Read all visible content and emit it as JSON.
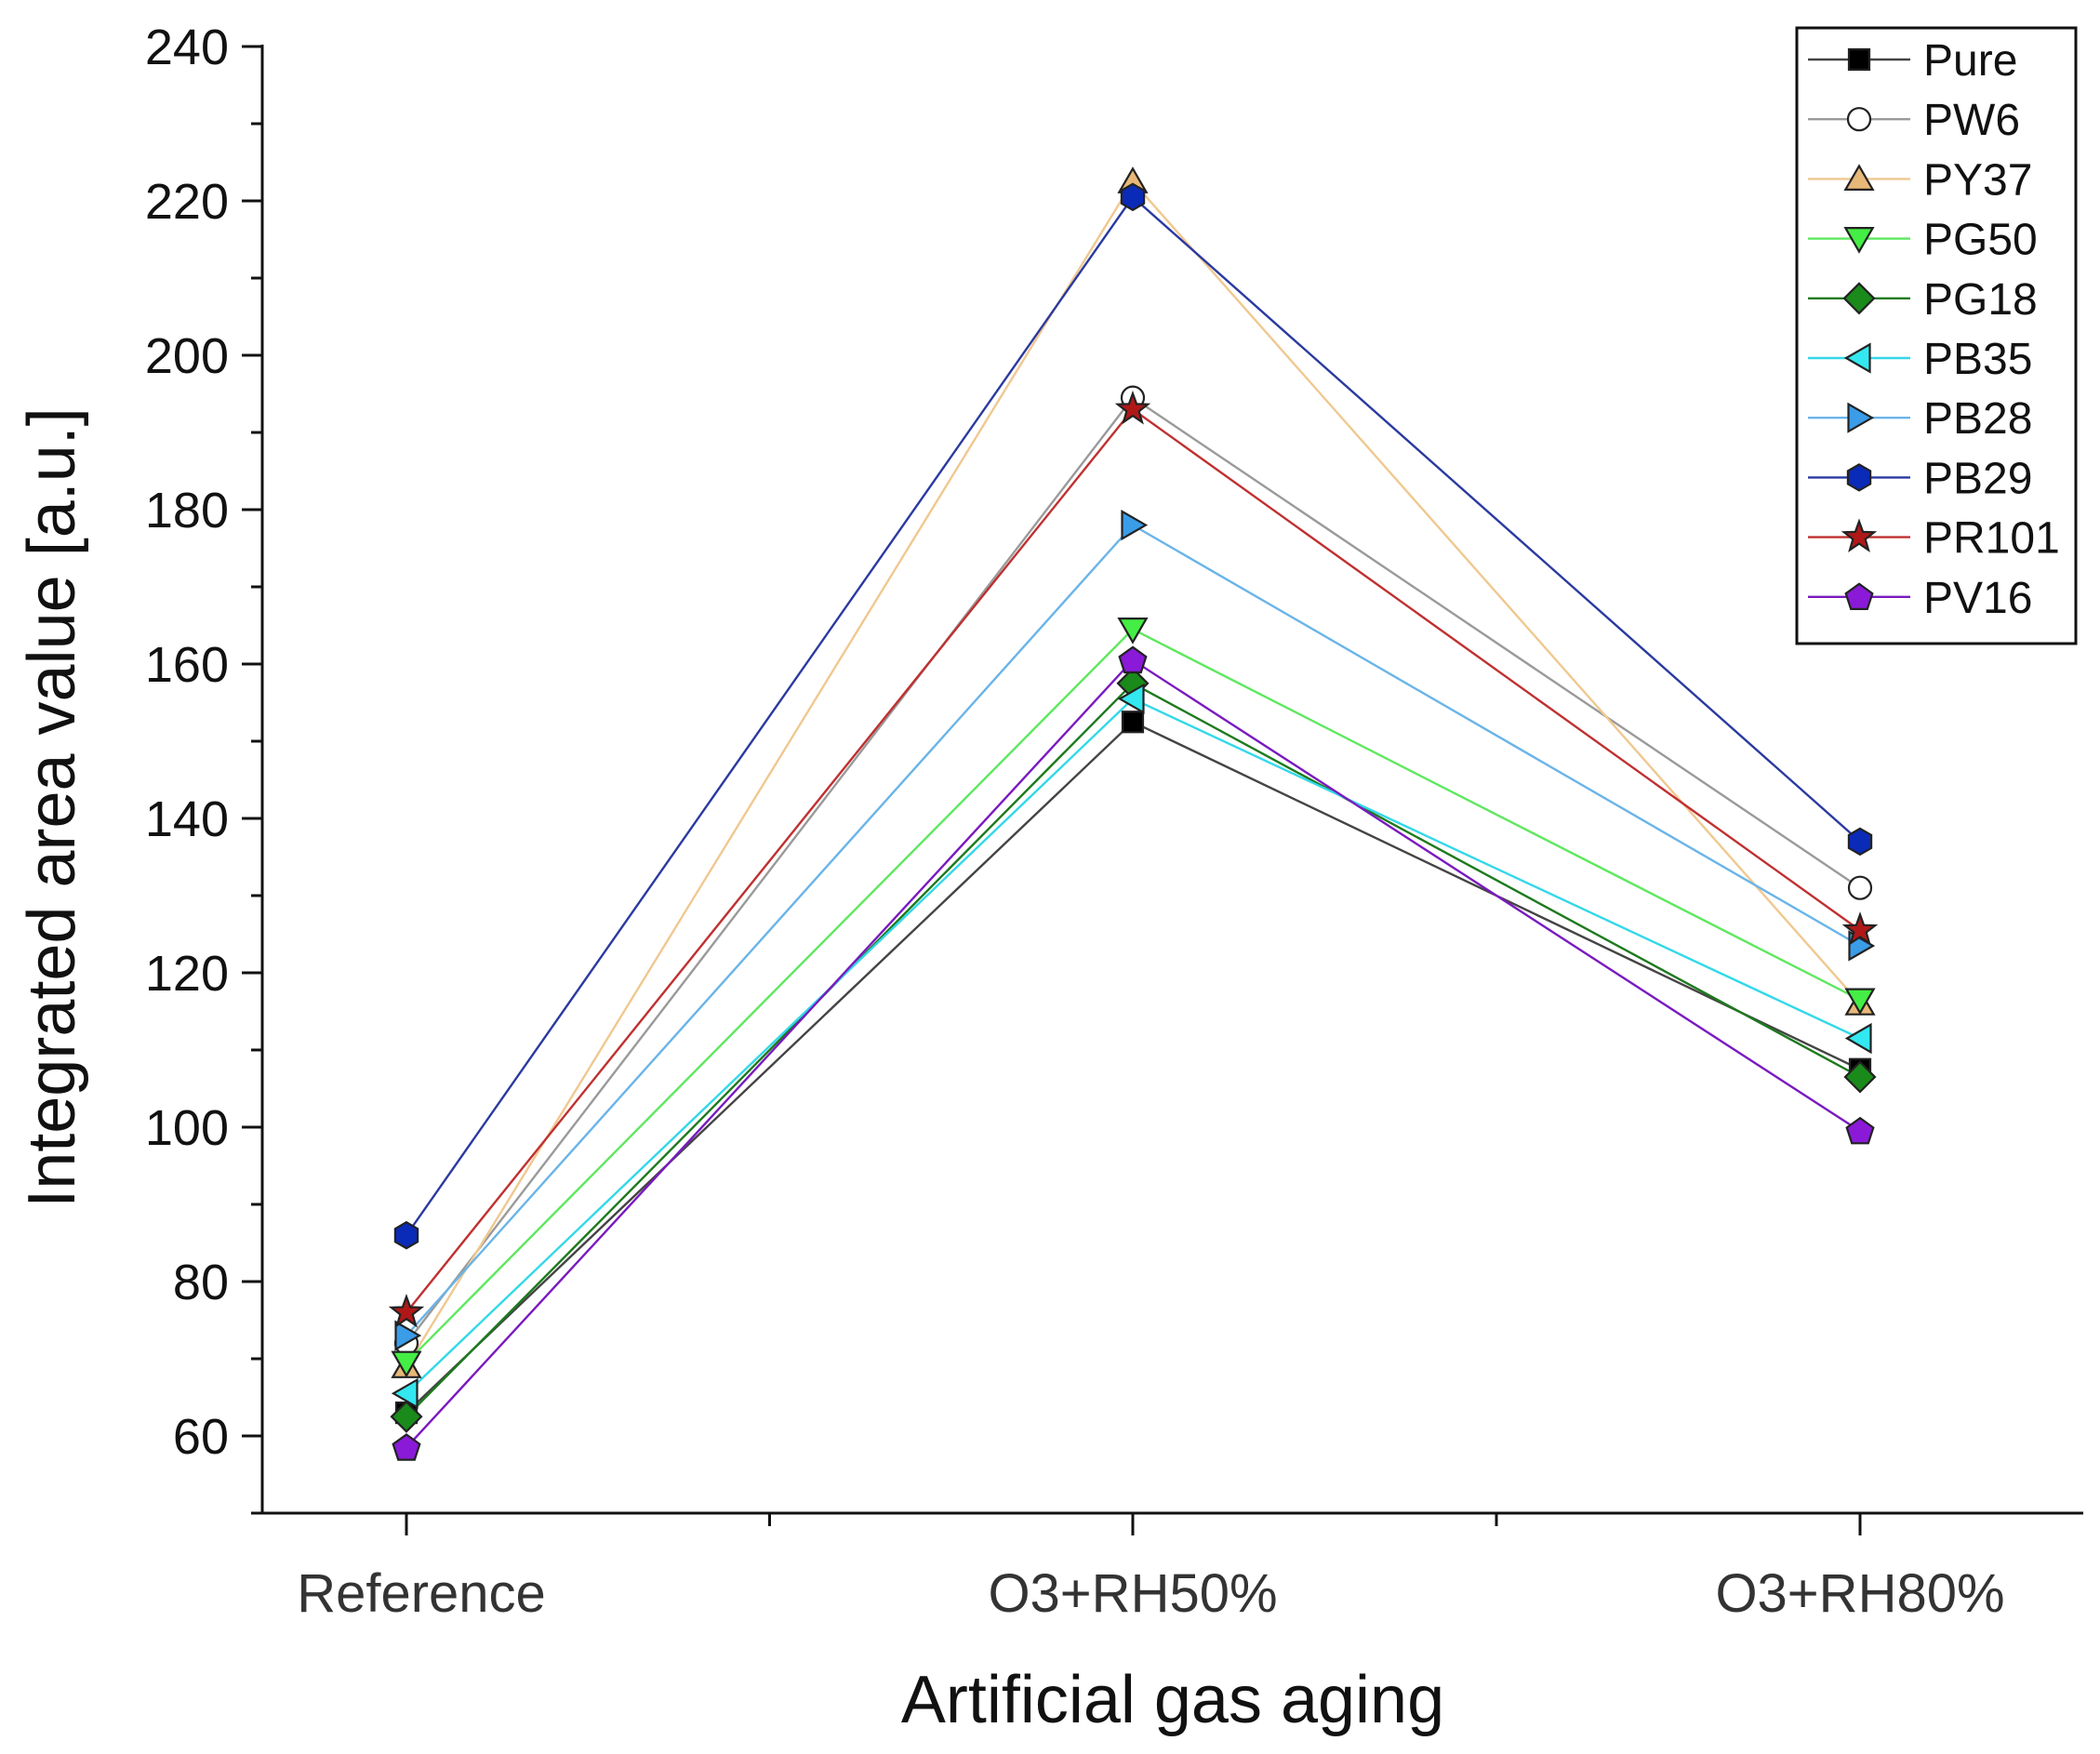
{
  "chart_data": {
    "type": "line",
    "title": "",
    "xlabel": "Artificial gas aging",
    "ylabel": "Integrated area value [a.u.]",
    "categories": [
      "Reference",
      "O3+RH50%",
      "O3+RH80%"
    ],
    "ylim": [
      50,
      240
    ],
    "yticks": [
      60,
      80,
      100,
      120,
      140,
      160,
      180,
      200,
      220,
      240
    ],
    "legend_position": "top-right",
    "series": [
      {
        "name": "Pure",
        "marker": "square",
        "color": "#000000",
        "line_color": "#444444",
        "values": [
          63,
          152.5,
          107.5
        ]
      },
      {
        "name": "PW6",
        "marker": "circle-open",
        "color": "#ffffff",
        "line_color": "#9a9a9a",
        "values": [
          72,
          194.5,
          131
        ]
      },
      {
        "name": "PY37",
        "marker": "triangle-up",
        "color": "#e8b878",
        "line_color": "#f0c890",
        "values": [
          69,
          222.5,
          116
        ]
      },
      {
        "name": "PG50",
        "marker": "triangle-down",
        "color": "#44ee44",
        "line_color": "#5ee85e",
        "values": [
          69.5,
          164.5,
          116.5
        ]
      },
      {
        "name": "PG18",
        "marker": "diamond",
        "color": "#1a8a1a",
        "line_color": "#1e7a1e",
        "values": [
          62.5,
          157.5,
          106.5
        ]
      },
      {
        "name": "PB35",
        "marker": "triangle-left",
        "color": "#33e8f0",
        "line_color": "#33d8e8",
        "values": [
          65.5,
          155.5,
          111.5
        ]
      },
      {
        "name": "PB28",
        "marker": "triangle-right",
        "color": "#3b9ce8",
        "line_color": "#6ab4e8",
        "values": [
          73,
          178,
          123.5
        ]
      },
      {
        "name": "PB29",
        "marker": "hexagon",
        "color": "#0a2ab8",
        "line_color": "#2a3aa0",
        "values": [
          86,
          220.5,
          137
        ]
      },
      {
        "name": "PR101",
        "marker": "star",
        "color": "#b01818",
        "line_color": "#c03030",
        "values": [
          76,
          193,
          125.5
        ]
      },
      {
        "name": "PV16",
        "marker": "pentagon",
        "color": "#8a1ad8",
        "line_color": "#7a1ac0",
        "values": [
          58.5,
          160.5,
          99.5
        ]
      }
    ]
  }
}
